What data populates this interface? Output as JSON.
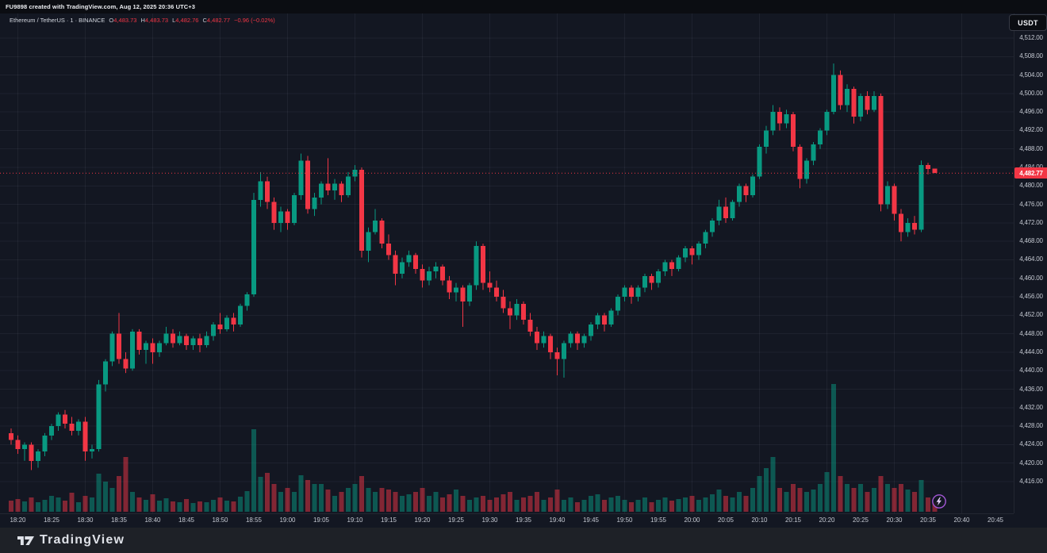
{
  "watermark": {
    "text": "FU9898 created with TradingView.com, Aug 12, 2025 20:36 UTC+3"
  },
  "legend": {
    "symbol": "Ethereum / TetherUS",
    "sep": "·",
    "interval": "1",
    "exchange": "BINANCE",
    "o_label": "O",
    "o": "4,483.73",
    "h_label": "H",
    "h": "4,483.73",
    "l_label": "L",
    "l": "4,482.76",
    "c_label": "C",
    "c": "4,482.77",
    "change": "−0.96 (−0.02%)"
  },
  "price_axis": {
    "currency_label": "USDT",
    "min": 4416,
    "max": 4512,
    "step": 4,
    "labels": [
      "4,512.00",
      "4,508.00",
      "4,504.00",
      "4,500.00",
      "4,496.00",
      "4,492.00",
      "4,488.00",
      "4,484.00",
      "4,480.00",
      "4,476.00",
      "4,472.00",
      "4,468.00",
      "4,464.00",
      "4,460.00",
      "4,456.00",
      "4,452.00",
      "4,448.00",
      "4,444.00",
      "4,440.00",
      "4,436.00",
      "4,432.00",
      "4,428.00",
      "4,424.00",
      "4,420.00",
      "4,416.00"
    ],
    "last_price_label": "4,482.77"
  },
  "time_axis": {
    "labels": [
      "18:20",
      "18:25",
      "18:30",
      "18:35",
      "18:40",
      "18:45",
      "18:50",
      "18:55",
      "19:00",
      "19:05",
      "19:10",
      "19:15",
      "19:20",
      "19:25",
      "19:30",
      "19:35",
      "19:40",
      "19:45",
      "19:50",
      "19:55",
      "20:00",
      "20:05",
      "20:10",
      "20:15",
      "20:20",
      "20:25",
      "20:30",
      "20:35",
      "20:40",
      "20:45"
    ],
    "first_label_index": 1,
    "label_every": 5,
    "grid_first_index": 1,
    "grid_every": 10
  },
  "footer": {
    "logo_text": "TradingView"
  },
  "colors": {
    "up": "#089981",
    "down": "#f23645",
    "volume_up": "rgba(8,153,129,0.5)",
    "volume_down": "rgba(242,54,69,0.5)",
    "grid": "rgba(240,243,250,0.055)",
    "price_line": "#f23645",
    "flash_badge": "#a457d7",
    "background": "#131722"
  },
  "chart_data": {
    "type": "candlestick",
    "symbol": "Ethereum / TetherUS",
    "exchange": "BINANCE",
    "interval": "1m",
    "start_time": "18:19",
    "end_time": "20:36",
    "current_price": 4482.77,
    "ylim": [
      4416,
      4512
    ],
    "last_candle": {
      "open": 4483.73,
      "high": 4483.73,
      "low": 4482.76,
      "close": 4482.77,
      "change": -0.96,
      "change_pct": -0.02
    },
    "volume_units": "relative",
    "candles": [
      [
        4426.5,
        4427.5,
        4424.0,
        4425.0,
        14
      ],
      [
        4425.0,
        4426.0,
        4422.0,
        4423.0,
        16
      ],
      [
        4423.0,
        4424.5,
        4420.5,
        4424.0,
        13
      ],
      [
        4424.0,
        4424.5,
        4418.5,
        4420.5,
        18
      ],
      [
        4420.5,
        4423.0,
        4419.0,
        4422.5,
        12
      ],
      [
        4422.5,
        4426.5,
        4421.5,
        4426.0,
        15
      ],
      [
        4426.0,
        4428.5,
        4425.0,
        4428.0,
        20
      ],
      [
        4428.0,
        4431.0,
        4427.0,
        4430.5,
        18
      ],
      [
        4430.5,
        4431.5,
        4427.5,
        4428.5,
        14
      ],
      [
        4428.5,
        4430.0,
        4426.0,
        4427.0,
        24
      ],
      [
        4427.0,
        4429.5,
        4426.0,
        4429.0,
        12
      ],
      [
        4429.0,
        4430.0,
        4420.5,
        4422.5,
        20
      ],
      [
        4422.5,
        4424.0,
        4421.0,
        4423.0,
        18
      ],
      [
        4423.0,
        4438.0,
        4422.5,
        4437.0,
        48
      ],
      [
        4437.0,
        4442.5,
        4435.5,
        4442.0,
        38
      ],
      [
        4442.0,
        4448.5,
        4441.0,
        4448.0,
        30
      ],
      [
        4448.0,
        4452.5,
        4441.5,
        4442.5,
        45
      ],
      [
        4442.5,
        4444.0,
        4439.5,
        4440.5,
        69
      ],
      [
        4440.5,
        4449.0,
        4440.0,
        4448.5,
        25
      ],
      [
        4448.5,
        4449.0,
        4443.5,
        4444.5,
        18
      ],
      [
        4444.5,
        4446.5,
        4441.5,
        4446.0,
        15
      ],
      [
        4446.0,
        4447.0,
        4441.5,
        4444.0,
        22
      ],
      [
        4444.0,
        4446.5,
        4443.0,
        4446.0,
        14
      ],
      [
        4446.0,
        4449.5,
        4445.5,
        4448.0,
        17
      ],
      [
        4448.0,
        4449.0,
        4445.0,
        4446.0,
        13
      ],
      [
        4446.0,
        4448.5,
        4445.5,
        4447.5,
        12
      ],
      [
        4447.5,
        4448.0,
        4444.5,
        4445.5,
        16
      ],
      [
        4445.5,
        4447.5,
        4444.5,
        4447.0,
        11
      ],
      [
        4447.0,
        4448.0,
        4444.0,
        4445.5,
        13
      ],
      [
        4445.5,
        4448.5,
        4445.0,
        4447.5,
        12
      ],
      [
        4447.5,
        4450.5,
        4446.5,
        4450.0,
        15
      ],
      [
        4450.0,
        4452.5,
        4448.0,
        4449.0,
        18
      ],
      [
        4449.0,
        4452.0,
        4448.5,
        4451.5,
        14
      ],
      [
        4451.5,
        4452.5,
        4448.5,
        4450.0,
        13
      ],
      [
        4450.0,
        4454.5,
        4449.5,
        4454.0,
        19
      ],
      [
        4454.0,
        4457.0,
        4453.0,
        4456.5,
        26
      ],
      [
        4456.5,
        4478.5,
        4456.0,
        4477.0,
        104
      ],
      [
        4477.0,
        4483.0,
        4475.5,
        4481.0,
        44
      ],
      [
        4481.0,
        4482.0,
        4475.0,
        4476.5,
        49
      ],
      [
        4476.5,
        4477.5,
        4470.5,
        4472.0,
        35
      ],
      [
        4472.0,
        4475.5,
        4470.0,
        4474.5,
        25
      ],
      [
        4474.5,
        4475.0,
        4470.5,
        4472.0,
        30
      ],
      [
        4472.0,
        4478.5,
        4471.5,
        4478.0,
        25
      ],
      [
        4478.0,
        4487.0,
        4477.0,
        4485.5,
        46
      ],
      [
        4485.5,
        4486.5,
        4474.0,
        4475.0,
        40
      ],
      [
        4475.0,
        4478.5,
        4473.5,
        4477.5,
        35
      ],
      [
        4477.5,
        4481.0,
        4476.0,
        4480.5,
        35
      ],
      [
        4480.5,
        4486.0,
        4478.0,
        4479.0,
        28
      ],
      [
        4479.0,
        4481.5,
        4477.0,
        4480.5,
        20
      ],
      [
        4480.5,
        4481.0,
        4476.5,
        4478.0,
        25
      ],
      [
        4478.0,
        4483.0,
        4477.5,
        4482.0,
        30
      ],
      [
        4482.0,
        4484.5,
        4481.0,
        4483.5,
        35
      ],
      [
        4483.5,
        4484.0,
        4464.5,
        4466.0,
        45
      ],
      [
        4466.0,
        4471.0,
        4463.5,
        4470.0,
        30
      ],
      [
        4470.0,
        4475.0,
        4469.5,
        4472.5,
        25
      ],
      [
        4472.5,
        4473.0,
        4466.5,
        4467.5,
        30
      ],
      [
        4467.5,
        4469.5,
        4464.0,
        4465.0,
        28
      ],
      [
        4465.0,
        4466.0,
        4458.5,
        4461.0,
        25
      ],
      [
        4461.0,
        4464.5,
        4460.0,
        4463.5,
        20
      ],
      [
        4463.5,
        4466.0,
        4462.5,
        4465.0,
        22
      ],
      [
        4465.0,
        4465.5,
        4461.0,
        4462.0,
        25
      ],
      [
        4462.0,
        4463.0,
        4458.0,
        4459.5,
        30
      ],
      [
        4459.5,
        4462.5,
        4458.5,
        4461.5,
        20
      ],
      [
        4461.5,
        4463.5,
        4460.0,
        4462.5,
        25
      ],
      [
        4462.5,
        4463.0,
        4458.5,
        4459.5,
        18
      ],
      [
        4459.5,
        4460.5,
        4455.5,
        4457.0,
        22
      ],
      [
        4457.0,
        4459.0,
        4455.0,
        4458.0,
        28
      ],
      [
        4458.0,
        4458.5,
        4449.5,
        4455.0,
        20
      ],
      [
        4455.0,
        4459.0,
        4454.0,
        4458.5,
        15
      ],
      [
        4458.5,
        4468.0,
        4457.5,
        4467.0,
        18
      ],
      [
        4467.0,
        4467.5,
        4457.5,
        4459.0,
        20
      ],
      [
        4459.0,
        4461.5,
        4457.0,
        4458.0,
        15
      ],
      [
        4458.0,
        4459.5,
        4455.0,
        4456.0,
        18
      ],
      [
        4456.0,
        4457.5,
        4452.5,
        4453.5,
        22
      ],
      [
        4453.5,
        4455.0,
        4449.0,
        4452.0,
        25
      ],
      [
        4452.0,
        4455.5,
        4451.0,
        4454.5,
        15
      ],
      [
        4454.5,
        4455.0,
        4450.0,
        4451.0,
        18
      ],
      [
        4451.0,
        4452.5,
        4447.5,
        4448.5,
        20
      ],
      [
        4448.5,
        4449.5,
        4444.5,
        4446.0,
        25
      ],
      [
        4446.0,
        4448.5,
        4445.0,
        4447.5,
        15
      ],
      [
        4447.5,
        4448.0,
        4442.5,
        4444.0,
        18
      ],
      [
        4444.0,
        4445.0,
        4439.0,
        4442.5,
        28
      ],
      [
        4442.5,
        4446.5,
        4438.5,
        4446.0,
        15
      ],
      [
        4446.0,
        4448.5,
        4445.0,
        4448.0,
        18
      ],
      [
        4448.0,
        4448.5,
        4444.5,
        4446.0,
        12
      ],
      [
        4446.0,
        4448.0,
        4445.0,
        4447.5,
        15
      ],
      [
        4447.5,
        4450.5,
        4446.5,
        4450.0,
        20
      ],
      [
        4450.0,
        4452.5,
        4449.0,
        4452.0,
        22
      ],
      [
        4452.0,
        4452.5,
        4448.5,
        4450.0,
        15
      ],
      [
        4450.0,
        4453.5,
        4449.5,
        4453.0,
        18
      ],
      [
        4453.0,
        4456.5,
        4452.0,
        4456.0,
        20
      ],
      [
        4456.0,
        4458.5,
        4455.0,
        4458.0,
        15
      ],
      [
        4458.0,
        4458.5,
        4454.5,
        4456.0,
        12
      ],
      [
        4456.0,
        4458.5,
        4455.0,
        4458.0,
        15
      ],
      [
        4458.0,
        4461.0,
        4457.0,
        4460.5,
        18
      ],
      [
        4460.5,
        4461.0,
        4457.5,
        4459.0,
        12
      ],
      [
        4459.0,
        4462.0,
        4458.0,
        4461.5,
        15
      ],
      [
        4461.5,
        4464.0,
        4460.5,
        4463.5,
        18
      ],
      [
        4463.5,
        4464.0,
        4460.5,
        4462.0,
        14
      ],
      [
        4462.0,
        4465.0,
        4461.5,
        4464.5,
        16
      ],
      [
        4464.5,
        4467.0,
        4463.5,
        4466.5,
        18
      ],
      [
        4466.5,
        4467.0,
        4463.0,
        4465.0,
        20
      ],
      [
        4465.0,
        4468.0,
        4464.0,
        4467.5,
        15
      ],
      [
        4467.5,
        4470.5,
        4466.5,
        4470.0,
        18
      ],
      [
        4470.0,
        4473.0,
        4469.0,
        4472.5,
        22
      ],
      [
        4472.5,
        4477.0,
        4471.5,
        4475.5,
        28
      ],
      [
        4475.5,
        4477.5,
        4472.0,
        4473.0,
        20
      ],
      [
        4473.0,
        4477.0,
        4472.5,
        4476.5,
        18
      ],
      [
        4476.5,
        4480.5,
        4475.5,
        4480.0,
        25
      ],
      [
        4480.0,
        4480.5,
        4476.5,
        4478.0,
        20
      ],
      [
        4478.0,
        4482.5,
        4477.5,
        4482.0,
        30
      ],
      [
        4482.0,
        4489.0,
        4481.5,
        4488.5,
        45
      ],
      [
        4488.5,
        4493.0,
        4487.0,
        4492.0,
        55
      ],
      [
        4492.0,
        4497.5,
        4491.0,
        4496.0,
        69
      ],
      [
        4496.0,
        4497.0,
        4492.0,
        4493.5,
        30
      ],
      [
        4493.5,
        4496.5,
        4492.5,
        4495.5,
        25
      ],
      [
        4495.5,
        4496.0,
        4487.5,
        4488.5,
        35
      ],
      [
        4488.5,
        4489.0,
        4479.5,
        4481.5,
        30
      ],
      [
        4481.5,
        4486.0,
        4480.5,
        4485.5,
        25
      ],
      [
        4485.5,
        4489.5,
        4484.5,
        4489.0,
        28
      ],
      [
        4489.0,
        4492.5,
        4488.0,
        4492.0,
        35
      ],
      [
        4492.0,
        4496.5,
        4491.0,
        4496.0,
        50
      ],
      [
        4496.0,
        4506.5,
        4495.5,
        4504.0,
        161
      ],
      [
        4504.0,
        4505.0,
        4496.5,
        4497.5,
        45
      ],
      [
        4497.5,
        4502.0,
        4496.0,
        4501.0,
        35
      ],
      [
        4501.0,
        4501.5,
        4493.5,
        4495.0,
        30
      ],
      [
        4495.0,
        4500.0,
        4494.0,
        4499.5,
        35
      ],
      [
        4499.5,
        4500.5,
        4495.5,
        4496.5,
        25
      ],
      [
        4496.5,
        4500.5,
        4496.0,
        4499.5,
        30
      ],
      [
        4499.5,
        4500.0,
        4474.5,
        4476.0,
        45
      ],
      [
        4476.0,
        4481.0,
        4475.0,
        4480.0,
        35
      ],
      [
        4480.0,
        4480.5,
        4472.5,
        4474.0,
        30
      ],
      [
        4474.0,
        4475.0,
        4468.0,
        4470.0,
        35
      ],
      [
        4470.0,
        4473.0,
        4469.0,
        4472.0,
        28
      ],
      [
        4472.0,
        4473.5,
        4469.5,
        4470.5,
        25
      ],
      [
        4470.5,
        4485.5,
        4470.0,
        4484.5,
        40
      ],
      [
        4484.5,
        4485.0,
        4482.5,
        4483.7,
        18
      ],
      [
        4483.73,
        4483.73,
        4482.76,
        4482.77,
        12
      ]
    ]
  }
}
